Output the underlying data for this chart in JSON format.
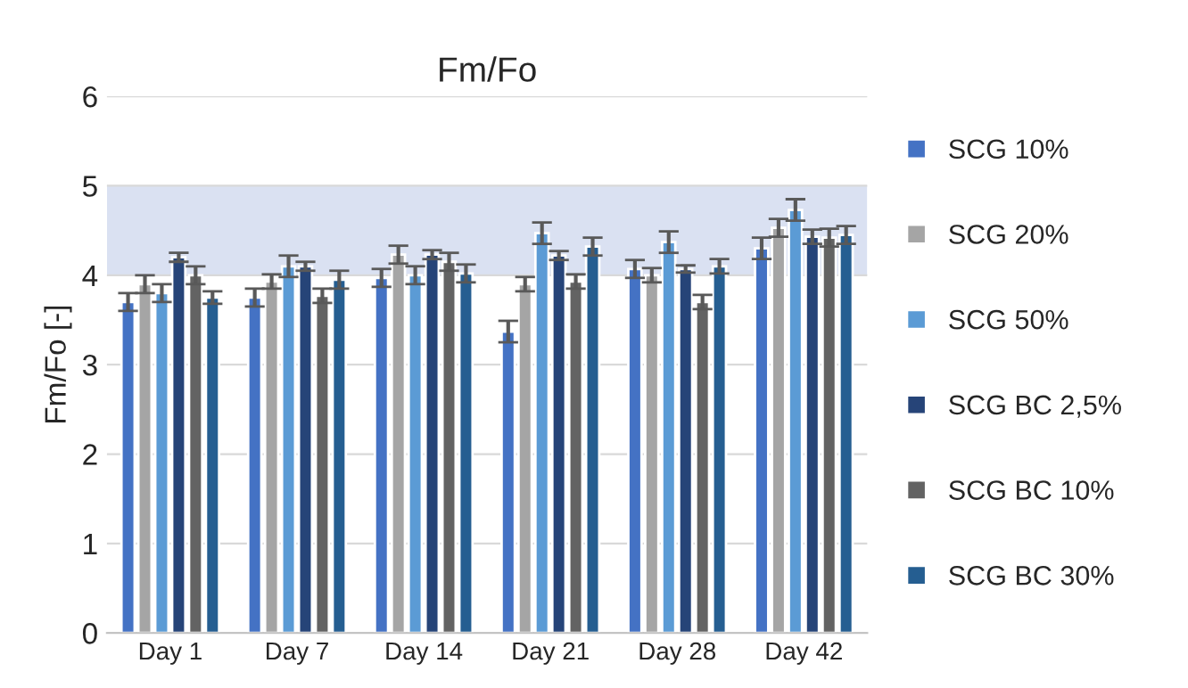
{
  "chart_data": {
    "type": "bar",
    "title": "Fm/Fo",
    "ylabel": "Fm/Fo [-]",
    "categories": [
      "Day 1",
      "Day 7",
      "Day 14",
      "Day 21",
      "Day 28",
      "Day 42"
    ],
    "series": [
      {
        "name": "SCG 10%",
        "color": "#4472c4",
        "values": [
          3.7,
          3.75,
          3.97,
          3.37,
          4.07,
          4.3
        ],
        "errors": [
          0.1,
          0.1,
          0.1,
          0.12,
          0.1,
          0.12
        ]
      },
      {
        "name": "SCG 20%",
        "color": "#a5a5a5",
        "values": [
          3.9,
          3.93,
          4.23,
          3.9,
          4.0,
          4.53
        ],
        "errors": [
          0.1,
          0.08,
          0.1,
          0.08,
          0.08,
          0.1
        ]
      },
      {
        "name": "SCG 50%",
        "color": "#5b9bd5",
        "values": [
          3.8,
          4.1,
          4.0,
          4.47,
          4.37,
          4.73
        ],
        "errors": [
          0.1,
          0.12,
          0.1,
          0.12,
          0.12,
          0.12
        ]
      },
      {
        "name": "SCG BC 2,5%",
        "color": "#264478",
        "values": [
          4.2,
          4.1,
          4.23,
          4.22,
          4.07,
          4.43
        ],
        "errors": [
          0.05,
          0.05,
          0.05,
          0.05,
          0.04,
          0.08
        ]
      },
      {
        "name": "SCG BC 10%",
        "color": "#636363",
        "values": [
          4.0,
          3.77,
          4.15,
          3.93,
          3.7,
          4.42
        ],
        "errors": [
          0.1,
          0.08,
          0.1,
          0.08,
          0.08,
          0.1
        ]
      },
      {
        "name": "SCG BC 30%",
        "color": "#255e91",
        "values": [
          3.75,
          3.95,
          4.02,
          4.32,
          4.1,
          4.45
        ],
        "errors": [
          0.07,
          0.1,
          0.1,
          0.1,
          0.08,
          0.1
        ]
      }
    ],
    "ylim": [
      0,
      6
    ],
    "yticks": [
      0,
      1,
      2,
      3,
      4,
      5,
      6
    ],
    "grid": "y",
    "legend": "right",
    "bands": [
      {
        "axis": "y",
        "from": 4,
        "to": 5,
        "label": null,
        "color": "#dae1f2"
      }
    ]
  }
}
